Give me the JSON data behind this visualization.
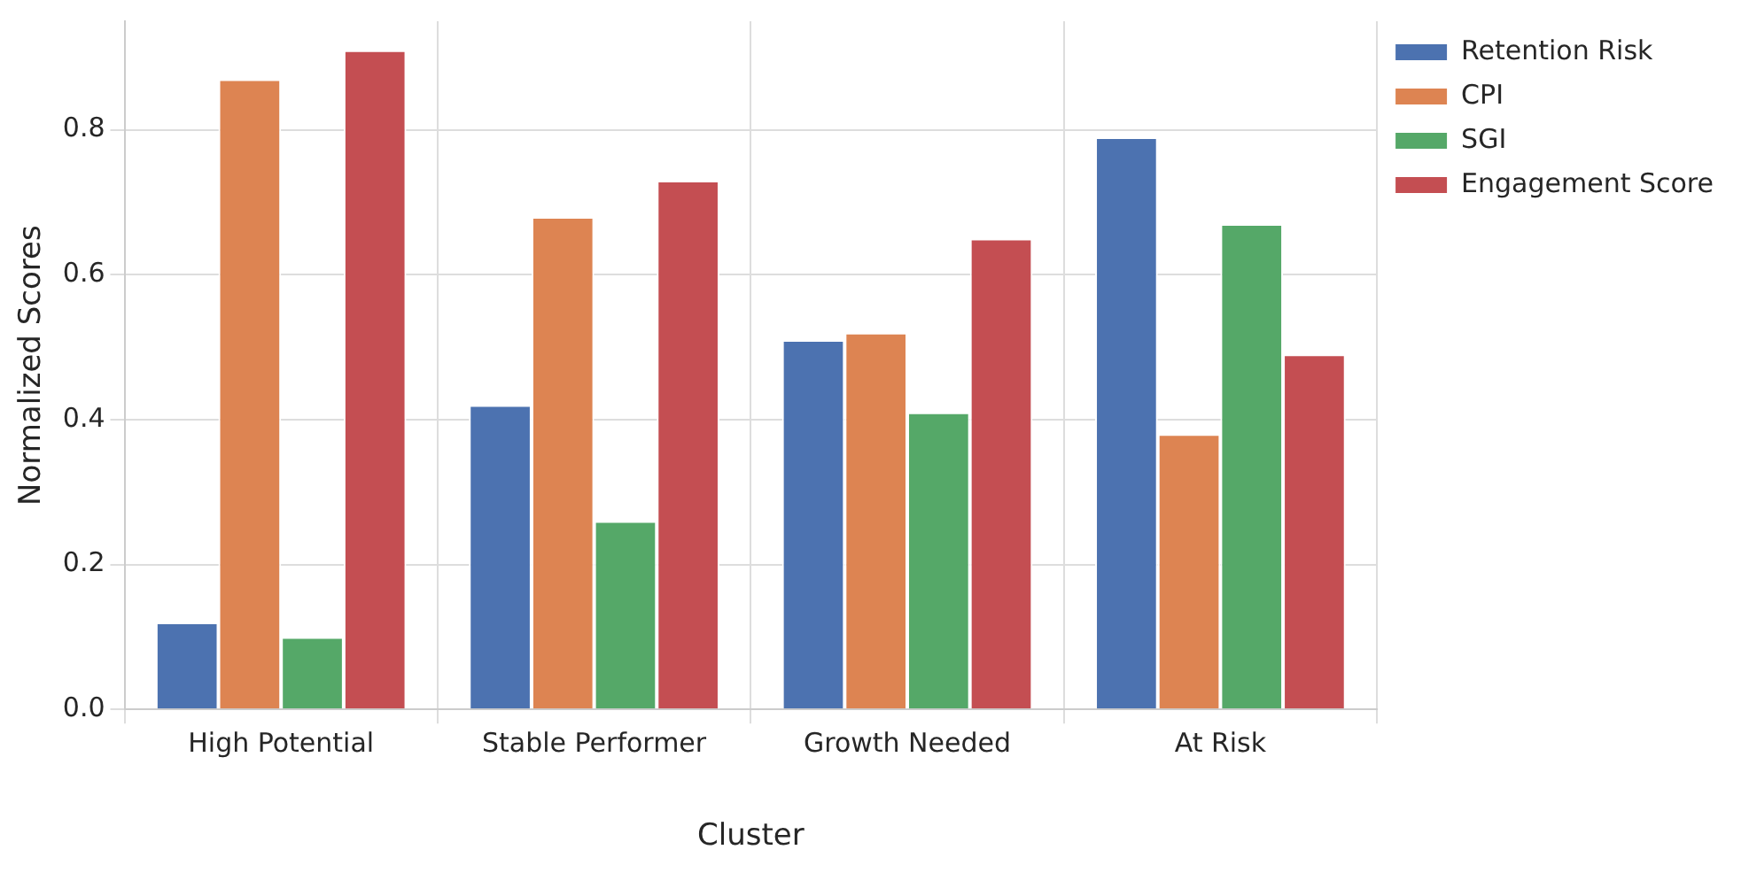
{
  "chart_data": {
    "type": "bar",
    "xlabel": "Cluster",
    "ylabel": "Normalized Scores",
    "categories": [
      "High Potential",
      "Stable Performer",
      "Growth Needed",
      "At Risk"
    ],
    "series": [
      {
        "name": "Retention Risk",
        "color": "#4c72b0",
        "values": [
          0.12,
          0.42,
          0.51,
          0.79
        ]
      },
      {
        "name": "CPI",
        "color": "#dd8452",
        "values": [
          0.87,
          0.68,
          0.52,
          0.38
        ]
      },
      {
        "name": "SGI",
        "color": "#55a868",
        "values": [
          0.1,
          0.26,
          0.41,
          0.67
        ]
      },
      {
        "name": "Engagement Score",
        "color": "#c44e52",
        "values": [
          0.91,
          0.73,
          0.65,
          0.49
        ]
      }
    ],
    "ylim": [
      0,
      0.95
    ],
    "yticks": [
      {
        "value": 0,
        "label": "0.0"
      },
      0.2,
      0.4,
      0.6,
      0.8
    ],
    "grid": true,
    "legend": "top right"
  }
}
